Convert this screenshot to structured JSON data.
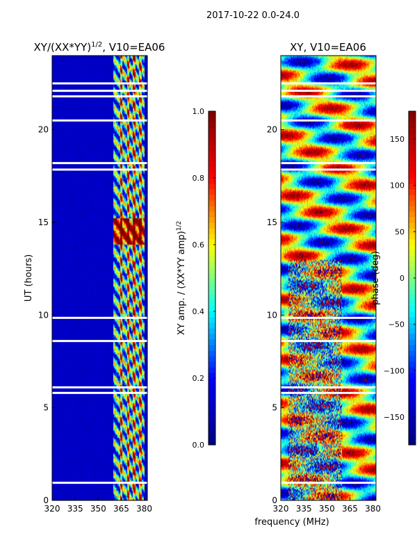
{
  "figure": {
    "suptitle": "2017-10-22 0.0-24.0",
    "shared_xlabel": "frequency (MHz)"
  },
  "colormap": {
    "name": "jet",
    "stops": [
      "#00007f",
      "#0000ff",
      "#00ffff",
      "#ffff00",
      "#ff0000",
      "#7f0000"
    ]
  },
  "chart_data": [
    {
      "type": "heatmap",
      "title": "XY/(XX*YY)^{1/2}, V10=EA06",
      "xlabel": "",
      "ylabel": "UT (hours)",
      "xlim": [
        320,
        382
      ],
      "ylim": [
        0,
        24
      ],
      "xticks": [
        320,
        335,
        350,
        365,
        380
      ],
      "yticks": [
        0,
        5,
        10,
        15,
        20
      ],
      "colorbar": {
        "label": "XY amp. / (XX*YY amp)^{1/2}",
        "range": [
          0.0,
          1.0
        ],
        "ticks": [
          0.0,
          0.2,
          0.4,
          0.6,
          0.8,
          1.0
        ],
        "tick_labels": [
          "0.0",
          "0.2",
          "0.4",
          "0.6",
          "0.8",
          "1.0"
        ]
      },
      "active_band_mhz": [
        360,
        380
      ],
      "bright_channels_mhz": [
        365,
        369.5,
        373.5,
        377.5
      ],
      "peak_hours": [
        13.8,
        15.2
      ],
      "gap_hours": [
        0.95,
        5.8,
        6.1,
        8.6,
        9.85,
        17.85,
        18.2,
        20.5,
        21.8,
        22.1,
        22.5
      ]
    },
    {
      "type": "heatmap",
      "title": "XY, V10=EA06",
      "xlabel": "frequency (MHz)",
      "ylabel": "",
      "xlim": [
        320,
        382
      ],
      "ylim": [
        0,
        24
      ],
      "xticks": [
        320,
        335,
        350,
        365,
        380
      ],
      "yticks": [
        0,
        5,
        10,
        15,
        20
      ],
      "colorbar": {
        "label": "phase (deg)",
        "range": [
          -180,
          180
        ],
        "ticks": [
          -150,
          -100,
          -50,
          0,
          50,
          100,
          150
        ],
        "tick_labels": [
          "−150",
          "−100",
          "−50",
          "0",
          "50",
          "100",
          "150"
        ]
      },
      "gap_hours": [
        0.95,
        5.8,
        6.1,
        8.6,
        9.85,
        17.85,
        18.2,
        20.5,
        21.8,
        22.1,
        22.5
      ]
    }
  ]
}
